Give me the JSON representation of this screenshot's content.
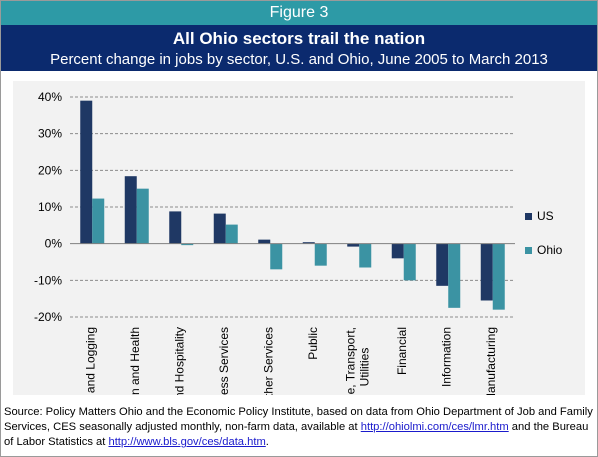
{
  "figure_label": "Figure 3",
  "chart_data": {
    "type": "bar",
    "title": "All Ohio sectors trail the nation",
    "subtitle": "Percent change in jobs by sector, U.S. and Ohio, June 2005 to March 2013",
    "categories": [
      "Mining and Logging",
      "Education and Health",
      "Leisure and Hospitality",
      "Prof. Business Services",
      "Other Services",
      "Public",
      "Trade, Transport, Utilities",
      "Financial",
      "Information",
      "Manufacturing"
    ],
    "series": [
      {
        "name": "US",
        "color": "#1f3864",
        "values": [
          39.0,
          18.4,
          8.8,
          8.2,
          1.1,
          0.4,
          -0.8,
          -4.0,
          -11.5,
          -15.5
        ]
      },
      {
        "name": "Ohio",
        "color": "#3b93a3",
        "values": [
          12.3,
          15.0,
          -0.4,
          5.2,
          -7.0,
          -6.0,
          -6.5,
          -10.0,
          -17.5,
          -18.0
        ]
      }
    ],
    "y_ticks": [
      "40%",
      "30%",
      "20%",
      "10%",
      "0%",
      "-10%",
      "-20%"
    ],
    "ylim": [
      -20,
      40
    ],
    "grid": "horizontal dashed",
    "legend_position": "right"
  },
  "source": {
    "text1": "Source: Policy Matters Ohio and the Economic Policy Institute, based on data from Ohio Department of Job and Family Services, CES seasonally adjusted monthly, non-farm data, available at ",
    "link1": "http://ohiolmi.com/ces/lmr.htm",
    "text2": " and the Bureau of Labor Statistics at ",
    "link2": "http://www.bls.gov/ces/data.htm",
    "text3": "."
  }
}
